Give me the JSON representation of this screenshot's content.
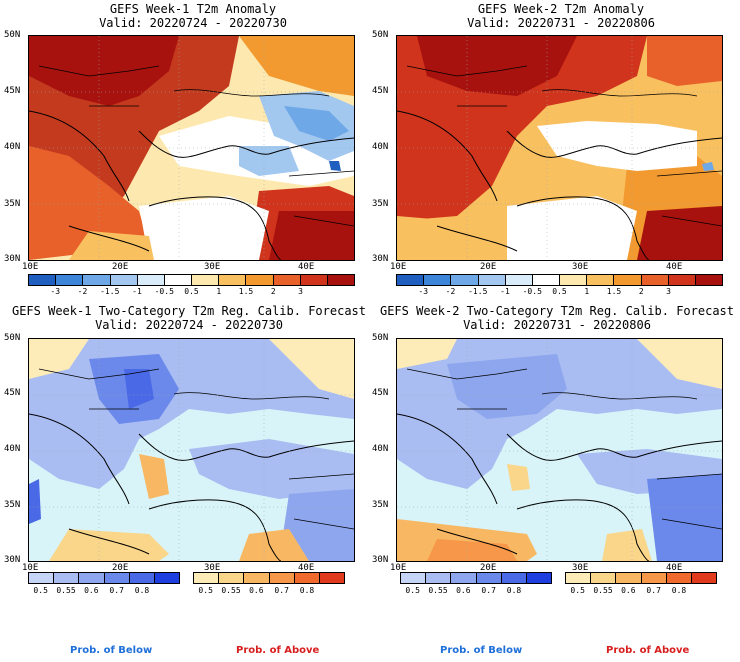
{
  "panels": [
    {
      "title1": "GEFS Week-1 T2m Anomaly",
      "title2": "Valid: 20220724 - 20220730"
    },
    {
      "title1": "GEFS Week-2 T2m Anomaly",
      "title2": "Valid: 20220731 - 20220806"
    },
    {
      "title1": "GEFS Week-1 Two-Category T2m Reg. Calib. Forecast",
      "title2": "Valid: 20220724 - 20220730"
    },
    {
      "title1": "GEFS Week-2 Two-Category T2m Reg. Calib. Forecast",
      "title2": "Valid: 20220731 - 20220806"
    }
  ],
  "lat_ticks": [
    "50N",
    "45N",
    "40N",
    "35N",
    "30N"
  ],
  "lon_ticks": [
    "10E",
    "20E",
    "30E",
    "40E"
  ],
  "anomaly_colorbar": {
    "labels": [
      "-3",
      "-2",
      "-1.5",
      "-1",
      "-0.5",
      "0.5",
      "1",
      "1.5",
      "2",
      "3"
    ],
    "colors": [
      "#1f5fbf",
      "#3d85d8",
      "#6fa8e6",
      "#a3c8f0",
      "#d9ecfa",
      "#ffffff",
      "#fde9b0",
      "#f9c060",
      "#f29a30",
      "#e8602a",
      "#d0341c",
      "#a8120e"
    ]
  },
  "below_colorbar": {
    "labels": [
      "0.5",
      "0.55",
      "0.6",
      "0.7",
      "0.8"
    ],
    "colors": [
      "#c6d4f7",
      "#a9bdf2",
      "#8da6ee",
      "#6b89ea",
      "#4a69e6",
      "#1f3ee0"
    ]
  },
  "above_colorbar": {
    "labels": [
      "0.5",
      "0.55",
      "0.6",
      "0.7",
      "0.8"
    ],
    "colors": [
      "#fdebb8",
      "#f9d68a",
      "#f8b863",
      "#f69749",
      "#f06a2e",
      "#e23a1c"
    ]
  },
  "prob_labels": {
    "below": "Prob. of Below",
    "above": "Prob. of Above"
  },
  "colors": {
    "below": "#1e6fd9",
    "above": "#d81e1e",
    "sea_prob": "#d8f4f8",
    "land_above_light": "#fde9b0",
    "land_below": "#a9bdf2"
  }
}
